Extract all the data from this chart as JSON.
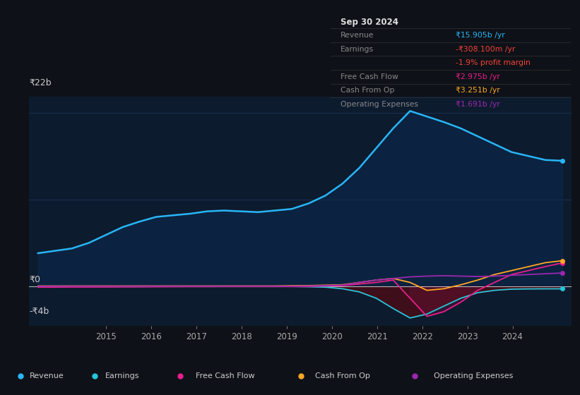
{
  "background_color": "#0e1117",
  "chart_bg_color": "#0d1b2e",
  "ylabel_top": "₹22b",
  "ylabel_zero": "₹0",
  "ylabel_bottom": "-₹4b",
  "ylim": [
    -5.0,
    24.0
  ],
  "xlim": [
    2013.3,
    2025.3
  ],
  "xticks": [
    2015,
    2016,
    2017,
    2018,
    2019,
    2020,
    2021,
    2022,
    2023,
    2024
  ],
  "colors": {
    "revenue": "#29b6f6",
    "earnings": "#26c6da",
    "free_cash_flow": "#e91e8c",
    "cash_from_op": "#ffa726",
    "operating_expenses": "#9c27b0"
  },
  "tooltip": {
    "date": "Sep 30 2024",
    "revenue_val": "₹15.905b",
    "revenue_color": "#29b6f6",
    "earnings_val": "-₹308.100m",
    "earnings_color": "#f44336",
    "profit_margin": "-1.9%",
    "profit_margin_color": "#f44336",
    "fcf_val": "₹2.975b",
    "fcf_color": "#e91e8c",
    "cash_op_val": "₹3.251b",
    "cash_op_color": "#ffa726",
    "op_exp_val": "₹1.691b",
    "op_exp_color": "#9c27b0"
  },
  "revenue": [
    4.2,
    4.5,
    4.8,
    5.5,
    6.5,
    7.5,
    8.2,
    8.8,
    9.0,
    9.2,
    9.5,
    9.6,
    9.5,
    9.4,
    9.6,
    9.8,
    10.5,
    11.5,
    13.0,
    15.0,
    17.5,
    20.0,
    22.2,
    21.5,
    20.8,
    20.0,
    19.0,
    18.0,
    17.0,
    16.5,
    16.0,
    15.9
  ],
  "earnings": [
    -0.02,
    -0.02,
    -0.02,
    -0.02,
    -0.03,
    -0.03,
    -0.03,
    -0.02,
    -0.02,
    -0.02,
    -0.02,
    -0.02,
    -0.02,
    -0.02,
    -0.02,
    -0.02,
    -0.05,
    -0.1,
    -0.3,
    -0.7,
    -1.5,
    -2.8,
    -4.0,
    -3.5,
    -2.5,
    -1.5,
    -0.8,
    -0.5,
    -0.35,
    -0.32,
    -0.31,
    -0.31
  ],
  "free_cash_flow": [
    -0.1,
    -0.1,
    -0.08,
    -0.08,
    -0.07,
    -0.06,
    -0.05,
    -0.04,
    -0.03,
    -0.02,
    -0.02,
    -0.01,
    -0.01,
    -0.01,
    -0.01,
    -0.01,
    0.0,
    0.05,
    0.1,
    0.3,
    0.5,
    0.8,
    -1.5,
    -3.8,
    -3.2,
    -2.0,
    -0.5,
    0.5,
    1.5,
    2.0,
    2.5,
    2.975
  ],
  "cash_from_op": [
    0.05,
    0.05,
    0.05,
    0.05,
    0.05,
    0.05,
    0.05,
    0.05,
    0.05,
    0.05,
    0.05,
    0.05,
    0.05,
    0.05,
    0.05,
    0.08,
    0.1,
    0.15,
    0.2,
    0.5,
    0.8,
    1.0,
    0.5,
    -0.5,
    -0.3,
    0.2,
    0.8,
    1.5,
    2.0,
    2.5,
    3.0,
    3.251
  ],
  "operating_expenses": [
    0.02,
    0.02,
    0.02,
    0.02,
    0.02,
    0.02,
    0.02,
    0.02,
    0.02,
    0.02,
    0.02,
    0.02,
    0.02,
    0.02,
    0.02,
    0.02,
    0.05,
    0.1,
    0.15,
    0.5,
    0.8,
    1.0,
    1.2,
    1.3,
    1.35,
    1.3,
    1.25,
    1.3,
    1.4,
    1.5,
    1.6,
    1.691
  ]
}
